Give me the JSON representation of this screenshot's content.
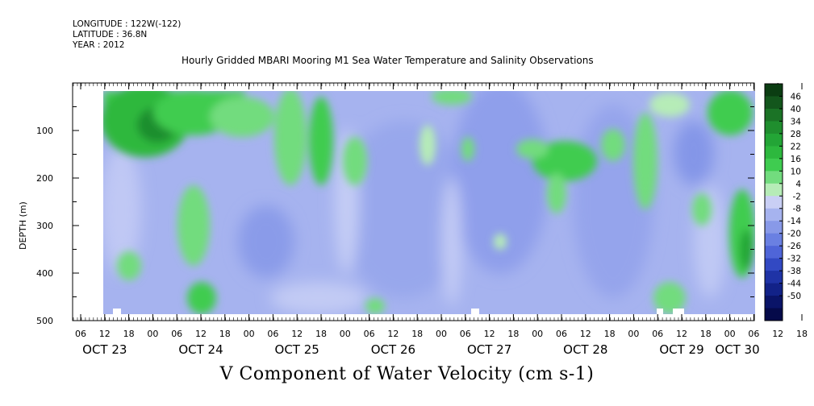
{
  "header": {
    "longitude": "LONGITUDE : 122W(-122)",
    "latitude": "LATITUDE : 36.8N",
    "year": "YEAR : 2012"
  },
  "chart_data": {
    "type": "heatmap",
    "title": "Hourly Gridded MBARI Mooring M1 Sea Water Temperature and Salinity Observations",
    "variable_label": "V Component of Water Velocity (cm s-1)",
    "ylabel": "DEPTH (m)",
    "y_reversed": true,
    "ylim": [
      0,
      500
    ],
    "y_ticks": [
      100,
      200,
      300,
      400,
      500
    ],
    "x_hour_ticks": [
      "06",
      "12",
      "18",
      "00",
      "06",
      "12",
      "18",
      "00",
      "06",
      "12",
      "18",
      "00",
      "06",
      "12",
      "18",
      "00",
      "06",
      "12",
      "18",
      "00",
      "06",
      "12",
      "18",
      "00",
      "06",
      "12",
      "18",
      "00",
      "06",
      "12",
      "18",
      "00"
    ],
    "x_day_labels": [
      "OCT 23",
      "OCT 24",
      "OCT 25",
      "OCT 26",
      "OCT 27",
      "OCT 28",
      "OCT 29",
      "OCT 30"
    ],
    "colorbar": {
      "levels": [
        46,
        40,
        34,
        28,
        22,
        16,
        10,
        4,
        -2,
        -8,
        -14,
        -20,
        -26,
        -32,
        -38,
        -44,
        -50
      ],
      "colors": [
        "#0b3d12",
        "#13561c",
        "#1b7326",
        "#1f8e2e",
        "#23a536",
        "#2db83e",
        "#3fcc50",
        "#72dc7e",
        "#b6ecb7",
        "#c9cff5",
        "#a6b3ef",
        "#8899e8",
        "#6a80e2",
        "#4f65d8",
        "#3249c3",
        "#1f33a6",
        "#122288",
        "#0a1468",
        "#050a4a"
      ]
    },
    "field_summary": [
      {
        "region": "OCT 23 12:00 to OCT 24 18:00, 20-150 m",
        "value": 30
      },
      {
        "region": "OCT 24 21:00 to OCT 25 18:00, 20-120 m",
        "value": 12
      },
      {
        "region": "OCT 25 06:00, 300-380 m",
        "value": -22
      },
      {
        "region": "OCT 26 to OCT 27, 50-480 m",
        "value": -18
      },
      {
        "region": "OCT 28 06:00, 150-200 m",
        "value": 18
      },
      {
        "region": "OCT 30 00:00, 250-380 m",
        "value": 16
      }
    ]
  }
}
